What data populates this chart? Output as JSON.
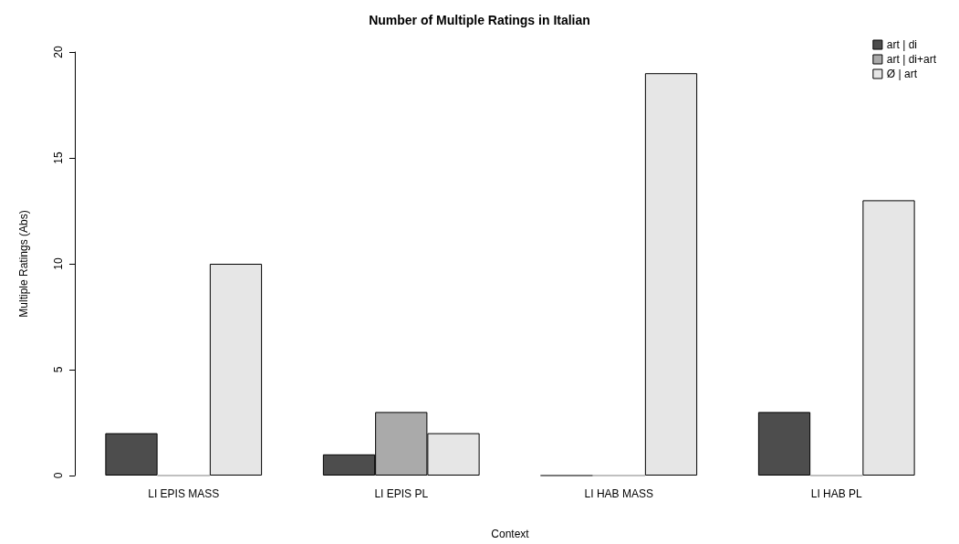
{
  "chart_data": {
    "type": "bar",
    "title": "Number of Multiple Ratings in Italian",
    "xlabel": "Context",
    "ylabel": "Multiple Ratings (Abs)",
    "categories": [
      "LI EPIS MASS",
      "LI EPIS PL",
      "LI HAB MASS",
      "LI HAB PL"
    ],
    "series": [
      {
        "name": "art | di",
        "color": "#4d4d4d",
        "values": [
          2,
          1,
          0,
          3
        ]
      },
      {
        "name": "art | di+art",
        "color": "#aaaaaa",
        "values": [
          0,
          3,
          0,
          0
        ]
      },
      {
        "name": "Ø | art",
        "color": "#e6e6e6",
        "values": [
          10,
          2,
          19,
          13
        ]
      }
    ],
    "ylim": [
      0,
      20
    ],
    "yticks": [
      0,
      5,
      10,
      15,
      20
    ],
    "grid": false,
    "legend": "top right"
  }
}
